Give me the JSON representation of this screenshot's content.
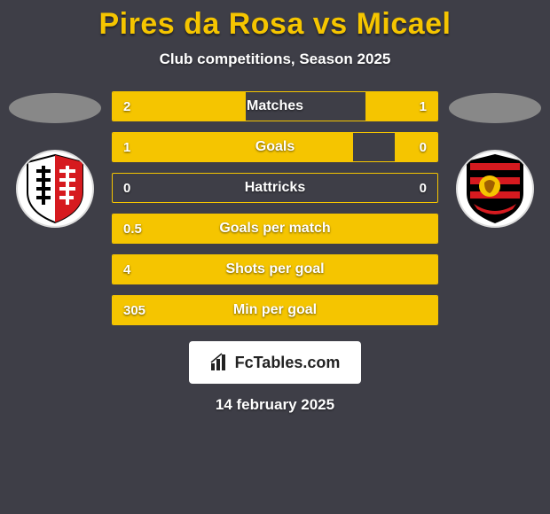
{
  "title": "Pires da Rosa vs Micael",
  "subtitle": "Club competitions, Season 2025",
  "date": "14 february 2025",
  "logo_text": "FcTables.com",
  "colors": {
    "background": "#3e3e47",
    "accent": "#f5c500",
    "text": "#ffffff"
  },
  "badges": {
    "left": {
      "name": "santa-cruz-badge",
      "primary": "#000000",
      "secondary": "#d61a1f",
      "bg": "#ffffff"
    },
    "right": {
      "name": "sport-recife-badge",
      "primary": "#d61a1f",
      "secondary": "#000000",
      "detail": "#f5c500"
    }
  },
  "stats": [
    {
      "label": "Matches",
      "left_val": "2",
      "right_val": "1",
      "left_pct": 41,
      "right_pct": 22
    },
    {
      "label": "Goals",
      "left_val": "1",
      "right_val": "0",
      "left_pct": 74,
      "right_pct": 13
    },
    {
      "label": "Hattricks",
      "left_val": "0",
      "right_val": "0",
      "left_pct": 0,
      "right_pct": 0
    },
    {
      "label": "Goals per match",
      "left_val": "0.5",
      "right_val": "",
      "left_pct": 100,
      "right_pct": 0
    },
    {
      "label": "Shots per goal",
      "left_val": "4",
      "right_val": "",
      "left_pct": 100,
      "right_pct": 0
    },
    {
      "label": "Min per goal",
      "left_val": "305",
      "right_val": "",
      "left_pct": 100,
      "right_pct": 0
    }
  ]
}
